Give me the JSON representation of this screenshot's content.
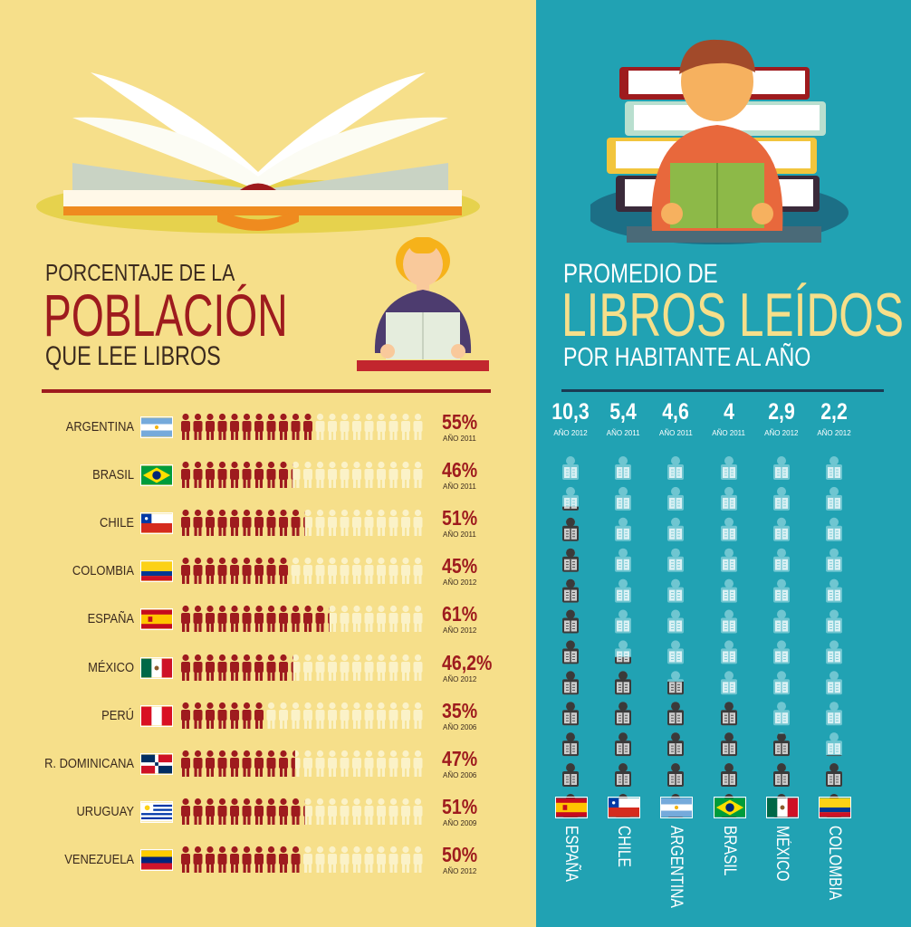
{
  "colors": {
    "left_bg": "#f6df8a",
    "right_bg": "#21a2b3",
    "person_filled": "#9e1b1e",
    "person_empty": "#fbf2c8",
    "book_filled": "#3a3a3a",
    "book_empty": "#6fc6d1",
    "title_red": "#9e1b1e",
    "title_yellow": "#f6df8a"
  },
  "left_title": {
    "line1": "PORCENTAJE DE LA",
    "line2": "POBLACIÓN",
    "line3": "QUE LEE LIBROS"
  },
  "right_title": {
    "line1": "PROMEDIO DE",
    "line2": "LIBROS LEÍDOS",
    "line3": "POR HABITANTE AL AÑO"
  },
  "chart_data": [
    {
      "type": "bar",
      "title": "PORCENTAJE DE LA POBLACIÓN QUE LEE LIBROS",
      "icons_per_row": 20,
      "categories": [
        "ARGENTINA",
        "BRASIL",
        "CHILE",
        "COLOMBIA",
        "ESPAÑA",
        "MÉXICO",
        "PERÚ",
        "R. DOMINICANA",
        "URUGUAY",
        "VENEZUELA"
      ],
      "values": [
        55,
        46,
        51,
        45,
        61,
        46.2,
        35,
        47,
        51,
        50
      ],
      "value_labels": [
        "55%",
        "46%",
        "51%",
        "45%",
        "61%",
        "46,2%",
        "35%",
        "47%",
        "51%",
        "50%"
      ],
      "years": [
        "AÑO 2011",
        "AÑO 2011",
        "AÑO 2011",
        "AÑO 2012",
        "AÑO 2012",
        "AÑO 2012",
        "AÑO 2006",
        "AÑO 2006",
        "AÑO 2009",
        "AÑO 2012"
      ],
      "flags": [
        "argentina",
        "brasil",
        "chile",
        "colombia",
        "espana",
        "mexico",
        "peru",
        "rdominicana",
        "uruguay",
        "venezuela"
      ]
    },
    {
      "type": "bar",
      "title": "PROMEDIO DE LIBROS LEÍDOS POR HABITANTE AL AÑO",
      "icons_per_column": 12,
      "categories": [
        "ESPAÑA",
        "CHILE",
        "ARGENTINA",
        "BRASIL",
        "MÉXICO",
        "COLOMBIA"
      ],
      "values": [
        10.3,
        5.4,
        4.6,
        4,
        2.9,
        2.2
      ],
      "value_labels": [
        "10,3",
        "5,4",
        "4,6",
        "4",
        "2,9",
        "2,2"
      ],
      "years": [
        "AÑO 2012",
        "AÑO 2011",
        "AÑO 2011",
        "AÑO 2011",
        "AÑO 2012",
        "AÑO 2012"
      ],
      "flags": [
        "espana",
        "chile",
        "argentina",
        "brasil",
        "mexico",
        "colombia"
      ]
    }
  ]
}
